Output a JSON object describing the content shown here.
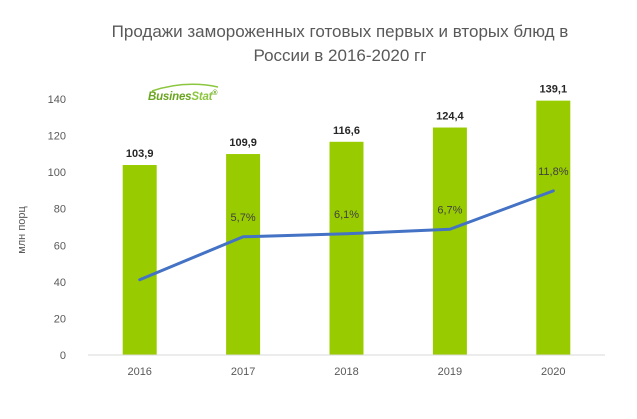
{
  "chart_data": {
    "type": "bar",
    "title_line1": "Продажи замороженных готовых первых и вторых блюд в",
    "title_line2": "России в 2016-2020 гг",
    "ylabel": "млн порц",
    "categories": [
      "2016",
      "2017",
      "2018",
      "2019",
      "2020"
    ],
    "values": [
      103.9,
      109.9,
      116.6,
      124.4,
      139.1
    ],
    "value_labels": [
      "103,9",
      "109,9",
      "116,6",
      "124,4",
      "139,1"
    ],
    "ylim": [
      0,
      140
    ],
    "yticks": [
      0,
      20,
      40,
      60,
      80,
      100,
      120,
      140
    ],
    "growth_line": {
      "values": [
        null,
        5.7,
        6.1,
        6.7,
        11.8
      ],
      "labels": [
        "",
        "5,7%",
        "6,1%",
        "6,7%",
        "11,8%"
      ],
      "color": "#4472c4"
    },
    "bar_color": "#99cc00",
    "grid": false
  },
  "logo": {
    "part1": "Busines",
    "part2": "Stat",
    "mark": "®"
  }
}
